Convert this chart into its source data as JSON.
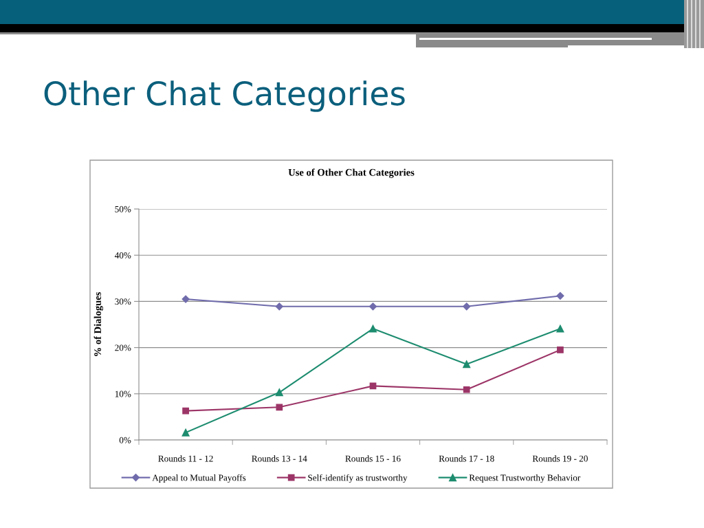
{
  "chart_data": {
    "type": "line",
    "title": "Other Chat Categories",
    "subtitle": "Use of Other Chat Categories",
    "ylabel": "% of Dialogues",
    "categories": [
      "Rounds 11 - 12",
      "Rounds 13 - 14",
      "Rounds 15 - 16",
      "Rounds 17 - 18",
      "Rounds 19 - 20"
    ],
    "series": [
      {
        "name": "Appeal to Mutual Payoffs",
        "color": "#706cac",
        "marker": "diamond",
        "values": [
          30.5,
          28.9,
          28.9,
          28.9,
          31.2
        ]
      },
      {
        "name": "Self-identify as trustworthy",
        "color": "#9c3567",
        "marker": "square",
        "values": [
          6.3,
          7.1,
          11.7,
          10.9,
          19.5
        ]
      },
      {
        "name": "Request Trustworthy Behavior",
        "color": "#1d8c6f",
        "marker": "triangle",
        "values": [
          1.6,
          10.3,
          24.1,
          16.4,
          24.1
        ]
      }
    ],
    "ylim": [
      0,
      50
    ],
    "yticks": [
      {
        "value": 0,
        "label": "0%"
      },
      {
        "value": 10,
        "label": "10%"
      },
      {
        "value": 20,
        "label": "20%"
      },
      {
        "value": 30,
        "label": "30%"
      },
      {
        "value": 40,
        "label": "40%"
      },
      {
        "value": 50,
        "label": "50%"
      }
    ],
    "grid": "y",
    "legend": "bottom",
    "line_style": "solid"
  }
}
